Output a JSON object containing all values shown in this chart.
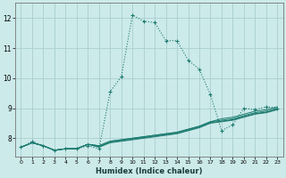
{
  "xlabel": "Humidex (Indice chaleur)",
  "background_color": "#cceaea",
  "grid_color": "#aacece",
  "line_color": "#1a7a6e",
  "xlim": [
    -0.5,
    23.5
  ],
  "ylim": [
    7.4,
    12.5
  ],
  "yticks": [
    8,
    9,
    10,
    11,
    12
  ],
  "xticks": [
    0,
    1,
    2,
    3,
    4,
    5,
    6,
    7,
    8,
    9,
    10,
    11,
    12,
    13,
    14,
    15,
    16,
    17,
    18,
    19,
    20,
    21,
    22,
    23
  ],
  "main_series": [
    [
      0,
      7.7
    ],
    [
      1,
      7.9
    ],
    [
      2,
      7.75
    ],
    [
      3,
      7.6
    ],
    [
      4,
      7.65
    ],
    [
      5,
      7.65
    ],
    [
      6,
      7.75
    ],
    [
      7,
      7.65
    ],
    [
      8,
      9.55
    ],
    [
      9,
      10.05
    ],
    [
      10,
      12.1
    ],
    [
      11,
      11.9
    ],
    [
      12,
      11.85
    ],
    [
      13,
      11.25
    ],
    [
      14,
      11.25
    ],
    [
      15,
      10.6
    ],
    [
      16,
      10.3
    ],
    [
      17,
      9.45
    ],
    [
      18,
      8.25
    ],
    [
      19,
      8.45
    ],
    [
      20,
      9.0
    ],
    [
      21,
      8.95
    ],
    [
      22,
      9.05
    ],
    [
      23,
      9.0
    ]
  ],
  "flat_series": [
    [
      [
        0,
        7.7
      ],
      [
        1,
        7.85
      ],
      [
        2,
        7.75
      ],
      [
        3,
        7.6
      ],
      [
        4,
        7.65
      ],
      [
        5,
        7.65
      ],
      [
        6,
        7.8
      ],
      [
        7,
        7.75
      ],
      [
        8,
        7.9
      ],
      [
        9,
        7.95
      ],
      [
        10,
        8.0
      ],
      [
        11,
        8.05
      ],
      [
        12,
        8.1
      ],
      [
        13,
        8.15
      ],
      [
        14,
        8.2
      ],
      [
        15,
        8.3
      ],
      [
        16,
        8.4
      ],
      [
        17,
        8.55
      ],
      [
        18,
        8.6
      ],
      [
        19,
        8.65
      ],
      [
        20,
        8.75
      ],
      [
        21,
        8.85
      ],
      [
        22,
        8.9
      ],
      [
        23,
        9.0
      ]
    ],
    [
      [
        0,
        7.7
      ],
      [
        1,
        7.85
      ],
      [
        2,
        7.75
      ],
      [
        3,
        7.6
      ],
      [
        4,
        7.65
      ],
      [
        5,
        7.65
      ],
      [
        6,
        7.8
      ],
      [
        7,
        7.75
      ],
      [
        8,
        7.9
      ],
      [
        9,
        7.95
      ],
      [
        10,
        8.0
      ],
      [
        11,
        8.05
      ],
      [
        12,
        8.1
      ],
      [
        13,
        8.15
      ],
      [
        14,
        8.2
      ],
      [
        15,
        8.3
      ],
      [
        16,
        8.4
      ],
      [
        17,
        8.55
      ],
      [
        18,
        8.65
      ],
      [
        19,
        8.7
      ],
      [
        20,
        8.8
      ],
      [
        21,
        8.9
      ],
      [
        22,
        8.95
      ],
      [
        23,
        9.05
      ]
    ],
    [
      [
        0,
        7.7
      ],
      [
        1,
        7.85
      ],
      [
        2,
        7.75
      ],
      [
        3,
        7.6
      ],
      [
        4,
        7.65
      ],
      [
        5,
        7.65
      ],
      [
        6,
        7.8
      ],
      [
        7,
        7.7
      ],
      [
        8,
        7.85
      ],
      [
        9,
        7.9
      ],
      [
        10,
        7.95
      ],
      [
        11,
        8.0
      ],
      [
        12,
        8.05
      ],
      [
        13,
        8.1
      ],
      [
        14,
        8.15
      ],
      [
        15,
        8.25
      ],
      [
        16,
        8.35
      ],
      [
        17,
        8.5
      ],
      [
        18,
        8.55
      ],
      [
        19,
        8.6
      ],
      [
        20,
        8.7
      ],
      [
        21,
        8.8
      ],
      [
        22,
        8.85
      ],
      [
        23,
        8.95
      ]
    ],
    [
      [
        0,
        7.7
      ],
      [
        1,
        7.85
      ],
      [
        2,
        7.75
      ],
      [
        3,
        7.6
      ],
      [
        4,
        7.65
      ],
      [
        5,
        7.65
      ],
      [
        6,
        7.8
      ],
      [
        7,
        7.72
      ],
      [
        8,
        7.87
      ],
      [
        9,
        7.92
      ],
      [
        10,
        7.97
      ],
      [
        11,
        8.02
      ],
      [
        12,
        8.07
      ],
      [
        13,
        8.12
      ],
      [
        14,
        8.17
      ],
      [
        15,
        8.27
      ],
      [
        16,
        8.37
      ],
      [
        17,
        8.52
      ],
      [
        18,
        8.57
      ],
      [
        19,
        8.62
      ],
      [
        20,
        8.72
      ],
      [
        21,
        8.82
      ],
      [
        22,
        8.87
      ],
      [
        23,
        8.97
      ]
    ]
  ]
}
